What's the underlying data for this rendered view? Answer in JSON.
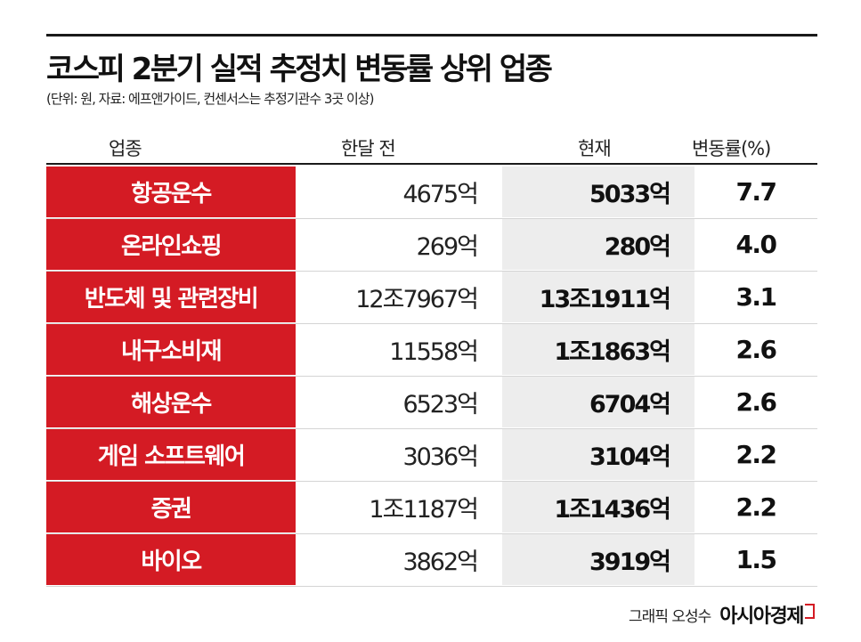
{
  "header": {
    "title": "코스피 2분기 실적 추정치 변동률 상위 업종",
    "subtitle": "(단위: 원, 자료: 에프앤가이드, 컨센서스는 추정기관수 3곳 이상)"
  },
  "table": {
    "columns": [
      "업종",
      "한달 전",
      "현재",
      "변동률(%)"
    ],
    "rows": [
      {
        "industry": "항공운수",
        "prev": "4675억",
        "current": "5033억",
        "change": "7.7"
      },
      {
        "industry": "온라인쇼핑",
        "prev": "269억",
        "current": "280억",
        "change": "4.0"
      },
      {
        "industry": "반도체 및 관련장비",
        "prev": "12조7967억",
        "current": "13조1911억",
        "change": "3.1"
      },
      {
        "industry": "내구소비재",
        "prev": "11558억",
        "current": "1조1863억",
        "change": "2.6"
      },
      {
        "industry": "해상운수",
        "prev": "6523억",
        "current": "6704억",
        "change": "2.6"
      },
      {
        "industry": "게임 소프트웨어",
        "prev": "3036억",
        "current": "3104억",
        "change": "2.2"
      },
      {
        "industry": "증권",
        "prev": "1조1187억",
        "current": "1조1436억",
        "change": "2.2"
      },
      {
        "industry": "바이오",
        "prev": "3862억",
        "current": "3919억",
        "change": "1.5"
      }
    ]
  },
  "footer": {
    "credit": "그래픽 오성수",
    "logo": "아시아경제"
  },
  "colors": {
    "accent_red": "#d41b24",
    "current_column_bg": "#ededed"
  },
  "chart_data": {
    "type": "table",
    "title": "코스피 2분기 실적 추정치 변동률 상위 업종",
    "subtitle": "(단위: 원, 자료: 에프앤가이드, 컨센서스는 추정기관수 3곳 이상)",
    "columns": [
      "업종",
      "한달 전",
      "현재",
      "변동률(%)"
    ],
    "categories": [
      "항공운수",
      "온라인쇼핑",
      "반도체 및 관련장비",
      "내구소비재",
      "해상운수",
      "게임 소프트웨어",
      "증권",
      "바이오"
    ],
    "series": [
      {
        "name": "한달 전",
        "values": [
          "4675억",
          "269억",
          "12조7967억",
          "11558억",
          "6523억",
          "3036억",
          "1조1187억",
          "3862억"
        ]
      },
      {
        "name": "현재",
        "values": [
          "5033억",
          "280억",
          "13조1911억",
          "1조1863억",
          "6704억",
          "3104억",
          "1조1436억",
          "3919억"
        ]
      },
      {
        "name": "변동률(%)",
        "values": [
          7.7,
          4.0,
          3.1,
          2.6,
          2.6,
          2.2,
          2.2,
          1.5
        ]
      }
    ]
  }
}
